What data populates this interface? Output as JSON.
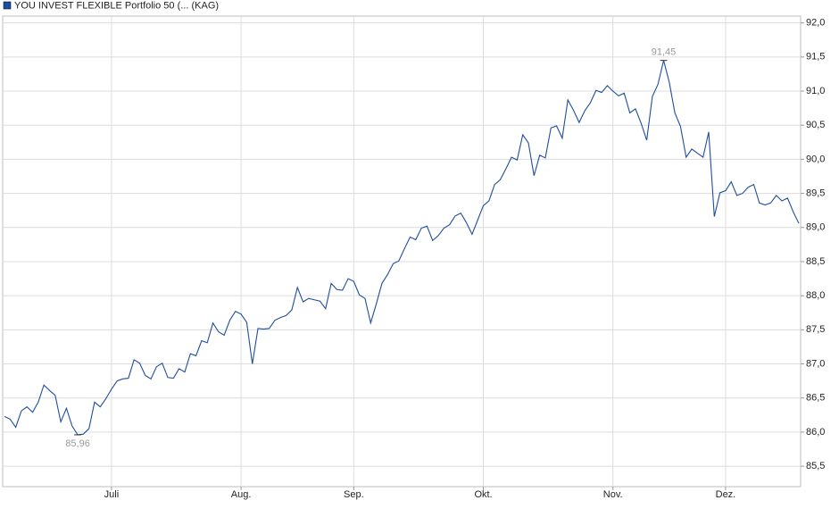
{
  "chart_data": {
    "type": "line",
    "series": [
      {
        "name": "YOU INVEST FLEXIBLE Portfolio 50 (... (KAG)",
        "color": "#1f4e9c",
        "values": [
          86.23,
          86.19,
          86.07,
          86.31,
          86.37,
          86.29,
          86.44,
          86.69,
          86.61,
          86.54,
          86.15,
          86.35,
          86.09,
          85.96,
          85.97,
          86.05,
          86.44,
          86.37,
          86.49,
          86.63,
          86.75,
          86.78,
          86.79,
          87.06,
          87.01,
          86.83,
          86.78,
          86.96,
          87.01,
          86.8,
          86.79,
          86.93,
          86.88,
          87.15,
          87.12,
          87.34,
          87.31,
          87.6,
          87.47,
          87.42,
          87.64,
          87.77,
          87.73,
          87.61,
          87.0,
          87.52,
          87.51,
          87.52,
          87.64,
          87.68,
          87.71,
          87.79,
          88.12,
          87.91,
          87.96,
          87.94,
          87.92,
          87.81,
          88.18,
          88.09,
          88.08,
          88.25,
          88.21,
          88.01,
          87.96,
          87.6,
          87.88,
          88.18,
          88.31,
          88.47,
          88.51,
          88.69,
          88.86,
          88.82,
          88.99,
          89.02,
          88.81,
          88.88,
          88.99,
          89.04,
          89.17,
          89.21,
          89.07,
          88.9,
          89.11,
          89.32,
          89.39,
          89.63,
          89.7,
          89.86,
          90.03,
          89.99,
          90.36,
          90.24,
          89.76,
          90.06,
          90.02,
          90.46,
          90.49,
          90.31,
          90.87,
          90.72,
          90.54,
          90.71,
          90.83,
          91.01,
          90.98,
          91.08,
          91.0,
          90.93,
          90.97,
          90.68,
          90.74,
          90.53,
          90.28,
          90.92,
          91.1,
          91.45,
          91.13,
          90.68,
          90.48,
          90.03,
          90.15,
          90.09,
          90.03,
          90.4,
          89.16,
          89.51,
          89.54,
          89.67,
          89.47,
          89.5,
          89.59,
          89.63,
          89.36,
          89.33,
          89.36,
          89.47,
          89.39,
          89.43,
          89.23,
          89.06
        ],
        "value_labels": [
          null,
          null,
          null,
          null,
          null,
          null,
          null,
          null,
          null,
          null,
          null,
          null,
          null,
          "85,96",
          null,
          null,
          null,
          null,
          null,
          null,
          null,
          null,
          null,
          null,
          null,
          null,
          null,
          null,
          null,
          null,
          null,
          null,
          null,
          null,
          null,
          null,
          null,
          null,
          null,
          null,
          null,
          null,
          null,
          null,
          null,
          null,
          null,
          null,
          null,
          null,
          null,
          null,
          null,
          null,
          null,
          null,
          null,
          null,
          null,
          null,
          null,
          null,
          null,
          null,
          null,
          null,
          null,
          null,
          null,
          null,
          null,
          null,
          null,
          null,
          null,
          null,
          null,
          null,
          null,
          null,
          null,
          null,
          null,
          null,
          null,
          null,
          null,
          null,
          null,
          null,
          null,
          null,
          null,
          null,
          null,
          null,
          null,
          null,
          null,
          null,
          null,
          null,
          null,
          null,
          null,
          null,
          null,
          null,
          null,
          null,
          null,
          null,
          null,
          null,
          null,
          null,
          null,
          "91,45",
          null,
          null,
          null,
          null,
          null,
          null,
          null,
          null,
          null,
          null,
          null,
          null,
          null,
          null,
          null,
          null,
          null,
          null,
          null,
          null,
          null,
          null,
          null,
          null
        ]
      }
    ],
    "categories": [
      null,
      null,
      null,
      null,
      null,
      null,
      null,
      null,
      null,
      null,
      null,
      null,
      null,
      null,
      null,
      null,
      null,
      null,
      null,
      "Juli",
      null,
      null,
      null,
      null,
      null,
      null,
      null,
      null,
      null,
      null,
      null,
      null,
      null,
      null,
      null,
      null,
      null,
      null,
      null,
      null,
      null,
      null,
      "Aug.",
      null,
      null,
      null,
      null,
      null,
      null,
      null,
      null,
      null,
      null,
      null,
      null,
      null,
      null,
      null,
      null,
      null,
      null,
      null,
      "Sep.",
      null,
      null,
      null,
      null,
      null,
      null,
      null,
      null,
      null,
      null,
      null,
      null,
      null,
      null,
      null,
      null,
      null,
      null,
      null,
      null,
      null,
      null,
      "Okt.",
      null,
      null,
      null,
      null,
      null,
      null,
      null,
      null,
      null,
      null,
      null,
      null,
      null,
      null,
      null,
      null,
      null,
      null,
      null,
      null,
      null,
      null,
      "Nov.",
      null,
      null,
      null,
      null,
      null,
      null,
      null,
      null,
      null,
      null,
      null,
      null,
      null,
      null,
      null,
      null,
      null,
      null,
      null,
      "Dez.",
      null,
      null,
      null,
      null,
      null,
      null,
      null,
      null,
      null,
      null,
      null,
      null,
      null
    ],
    "ylim": [
      85.2,
      92.1
    ],
    "yticks": [
      {
        "value": 85.5,
        "label": "85,5"
      },
      {
        "value": 86,
        "label": "86,0"
      },
      {
        "value": 86.5,
        "label": "86,5"
      },
      {
        "value": 87,
        "label": "87,0"
      },
      {
        "value": 87.5,
        "label": "87,5"
      },
      {
        "value": 88,
        "label": "88,0"
      },
      {
        "value": 88.5,
        "label": "88,5"
      },
      {
        "value": 89,
        "label": "89,0"
      },
      {
        "value": 89.5,
        "label": "89,5"
      },
      {
        "value": 90,
        "label": "90,0"
      },
      {
        "value": 90.5,
        "label": "90,5"
      },
      {
        "value": 91,
        "label": "91,0"
      },
      {
        "value": 91.5,
        "label": "91,5"
      },
      {
        "value": 92,
        "label": "92,0"
      }
    ],
    "grid": true,
    "legend": "top-left"
  }
}
